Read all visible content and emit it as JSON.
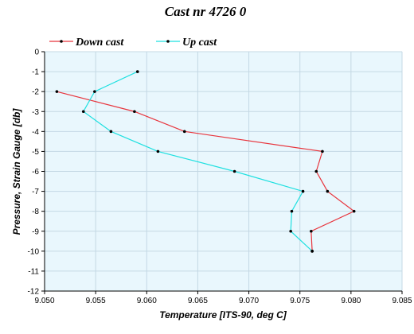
{
  "chart_data": {
    "type": "line",
    "title": "Cast nr 4726 0",
    "xlabel": "Temperature [ITS-90, deg C]",
    "ylabel": "Pressure, Strain Gauge [db]",
    "xlim": [
      9.05,
      9.085
    ],
    "ylim": [
      -12,
      0
    ],
    "x_ticks": [
      "9.050",
      "9.055",
      "9.060",
      "9.065",
      "9.070",
      "9.075",
      "9.080",
      "9.085"
    ],
    "y_ticks": [
      "0",
      "-1",
      "-2",
      "-3",
      "-4",
      "-5",
      "-6",
      "-7",
      "-8",
      "-9",
      "-10",
      "-11",
      "-12"
    ],
    "grid": true,
    "legend_position": "top-left",
    "series": [
      {
        "name": "Down cast",
        "color": "#e8343c",
        "marker_color": "#000000",
        "points": [
          {
            "x": 9.0512,
            "y": -2
          },
          {
            "x": 9.0588,
            "y": -3
          },
          {
            "x": 9.0637,
            "y": -4
          },
          {
            "x": 9.0772,
            "y": -5
          },
          {
            "x": 9.0766,
            "y": -6
          },
          {
            "x": 9.0777,
            "y": -7
          },
          {
            "x": 9.0803,
            "y": -8
          },
          {
            "x": 9.0761,
            "y": -9
          },
          {
            "x": 9.0762,
            "y": -10
          }
        ]
      },
      {
        "name": "Up cast",
        "color": "#1ee0e0",
        "marker_color": "#000000",
        "points": [
          {
            "x": 9.0591,
            "y": -1
          },
          {
            "x": 9.0549,
            "y": -2
          },
          {
            "x": 9.0538,
            "y": -3
          },
          {
            "x": 9.0565,
            "y": -4
          },
          {
            "x": 9.0611,
            "y": -5
          },
          {
            "x": 9.0686,
            "y": -6
          },
          {
            "x": 9.0753,
            "y": -7
          },
          {
            "x": 9.0742,
            "y": -8
          },
          {
            "x": 9.0741,
            "y": -9
          },
          {
            "x": 9.0762,
            "y": -10
          }
        ]
      }
    ]
  },
  "colors": {
    "plot_background": "#e9f7fd",
    "grid": "#c4d8e4",
    "axis": "#000000"
  }
}
